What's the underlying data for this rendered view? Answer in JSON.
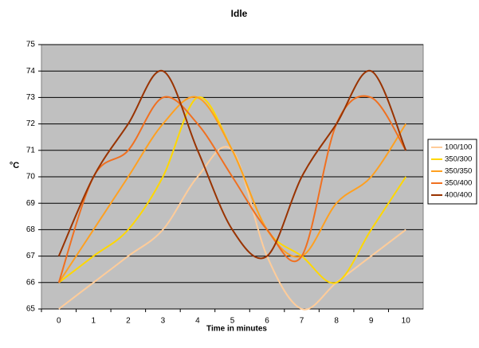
{
  "chart_data": {
    "type": "line",
    "title": "Idle",
    "x_label": "Time in minutes",
    "y_label": "°C",
    "categories": [
      "0",
      "1",
      "2",
      "3",
      "4",
      "5",
      "6",
      "7",
      "8",
      "9",
      "10"
    ],
    "series": [
      {
        "name": "100/100",
        "color": "#FFCC99",
        "values": [
          65,
          66,
          67,
          68,
          70,
          71,
          67,
          65,
          66,
          67,
          68
        ]
      },
      {
        "name": "350/300",
        "color": "#FFD700",
        "values": [
          66,
          67,
          68,
          70,
          73,
          71,
          68,
          67,
          66,
          68,
          70
        ]
      },
      {
        "name": "350/350",
        "color": "#FFA020",
        "values": [
          66,
          68,
          70,
          72,
          73,
          71,
          68,
          67,
          69,
          70,
          72
        ]
      },
      {
        "name": "350/400",
        "color": "#F07020",
        "values": [
          66,
          70,
          71,
          73,
          72,
          70,
          68,
          67,
          72,
          73,
          71
        ]
      },
      {
        "name": "400/400",
        "color": "#993300",
        "values": [
          67,
          70,
          72,
          74,
          71,
          68,
          67,
          70,
          72,
          74,
          71
        ]
      }
    ],
    "ylim": [
      65,
      75
    ],
    "yticks": [
      65,
      66,
      67,
      68,
      69,
      70,
      71,
      72,
      73,
      74,
      75
    ],
    "grid": true,
    "legend": "right"
  }
}
